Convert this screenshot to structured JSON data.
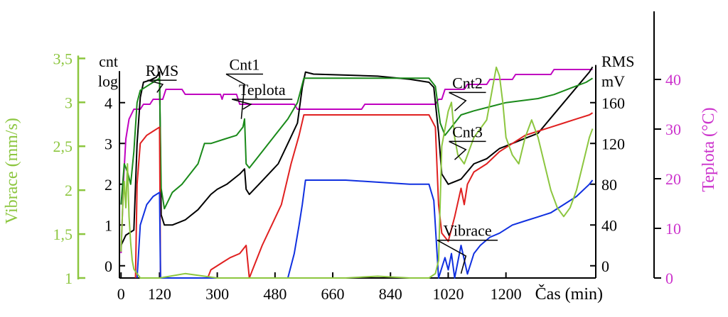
{
  "chart_data": {
    "type": "line",
    "axes": {
      "vibrace": {
        "label": "Vibrace (mm/s)",
        "range": [
          1,
          3.6
        ],
        "ticks": [
          "1",
          "1,5",
          "2",
          "2,5",
          "3",
          "3,5"
        ],
        "tick_values": [
          1,
          1.5,
          2,
          2.5,
          3,
          3.5
        ],
        "color": "#8cc63f"
      },
      "cnt": {
        "label_lines": [
          "cnt",
          "log"
        ],
        "range": [
          -0.3,
          5.3
        ],
        "ticks": [
          "0",
          "1",
          "2",
          "3",
          "4"
        ],
        "tick_values": [
          0,
          1,
          2,
          3,
          4
        ]
      },
      "rms": {
        "label_lines": [
          "RMS",
          "mV"
        ],
        "range": [
          -12,
          212
        ],
        "ticks": [
          "0",
          "40",
          "80",
          "120",
          "160"
        ],
        "tick_values": [
          0,
          40,
          80,
          120,
          160
        ]
      },
      "teplota": {
        "label": "Teplota (°C)",
        "range": [
          0,
          46
        ],
        "ticks": [
          "0",
          "10",
          "20",
          "30",
          "40"
        ],
        "tick_values": [
          0,
          10,
          20,
          30,
          40
        ],
        "color": "#cc33cc"
      },
      "time": {
        "label": "Čas (min)",
        "range": [
          -5,
          1480
        ],
        "ticks": [
          "0",
          "120",
          "300",
          "480",
          "660",
          "840",
          "1020",
          "1200"
        ],
        "tick_values": [
          0,
          120,
          300,
          480,
          660,
          840,
          1020,
          1200
        ]
      }
    },
    "series": [
      {
        "name": "Teplota",
        "axis": "teplota",
        "color": "#c000c0",
        "label_anchor": [
          440,
          36
        ],
        "label_leader": [
          [
            425,
            36
          ],
          [
            405,
            35
          ],
          [
            380,
            34
          ]
        ],
        "points": [
          [
            0,
            5
          ],
          [
            8,
            20
          ],
          [
            15,
            28
          ],
          [
            25,
            32
          ],
          [
            40,
            34
          ],
          [
            60,
            34
          ],
          [
            70,
            35
          ],
          [
            90,
            35
          ],
          [
            100,
            36
          ],
          [
            130,
            36
          ],
          [
            140,
            38
          ],
          [
            190,
            38
          ],
          [
            200,
            37
          ],
          [
            310,
            37
          ],
          [
            315,
            36
          ],
          [
            320,
            37
          ],
          [
            360,
            37
          ],
          [
            370,
            35
          ],
          [
            540,
            35
          ],
          [
            550,
            34
          ],
          [
            750,
            34
          ],
          [
            760,
            35
          ],
          [
            980,
            35
          ],
          [
            990,
            36
          ],
          [
            1000,
            36
          ],
          [
            1010,
            38
          ],
          [
            1070,
            38
          ],
          [
            1080,
            39
          ],
          [
            1140,
            39
          ],
          [
            1150,
            40
          ],
          [
            1220,
            40
          ],
          [
            1230,
            41
          ],
          [
            1340,
            41
          ],
          [
            1350,
            42
          ],
          [
            1470,
            42
          ]
        ]
      },
      {
        "name": "RMS",
        "axis": "rms",
        "color": "#000000",
        "label_anchor": [
          128,
          182
        ],
        "label_leader": [
          [
            155,
            183
          ],
          [
            130,
            178
          ],
          [
            112,
            170
          ]
        ],
        "points": [
          [
            0,
            20
          ],
          [
            15,
            30
          ],
          [
            40,
            35
          ],
          [
            50,
            120
          ],
          [
            60,
            165
          ],
          [
            70,
            180
          ],
          [
            90,
            182
          ],
          [
            110,
            185
          ],
          [
            120,
            190
          ],
          [
            125,
            50
          ],
          [
            135,
            40
          ],
          [
            160,
            40
          ],
          [
            200,
            45
          ],
          [
            240,
            55
          ],
          [
            280,
            70
          ],
          [
            300,
            75
          ],
          [
            330,
            80
          ],
          [
            370,
            90
          ],
          [
            385,
            95
          ],
          [
            390,
            75
          ],
          [
            400,
            70
          ],
          [
            430,
            80
          ],
          [
            460,
            90
          ],
          [
            490,
            100
          ],
          [
            520,
            120
          ],
          [
            550,
            140
          ],
          [
            565,
            175
          ],
          [
            575,
            190
          ],
          [
            600,
            188
          ],
          [
            700,
            187
          ],
          [
            800,
            186
          ],
          [
            900,
            183
          ],
          [
            960,
            180
          ],
          [
            975,
            175
          ],
          [
            990,
            130
          ],
          [
            1000,
            90
          ],
          [
            1020,
            80
          ],
          [
            1060,
            85
          ],
          [
            1100,
            100
          ],
          [
            1140,
            105
          ],
          [
            1180,
            115
          ],
          [
            1220,
            120
          ],
          [
            1260,
            125
          ],
          [
            1300,
            130
          ],
          [
            1340,
            145
          ],
          [
            1380,
            160
          ],
          [
            1420,
            175
          ],
          [
            1460,
            190
          ],
          [
            1470,
            195
          ]
        ]
      },
      {
        "name": "Cnt1",
        "axis": "cnt",
        "color": "#1a8a1a",
        "label_anchor": [
          385,
          4.7
        ],
        "label_leader": [
          [
            400,
            4.7
          ],
          [
            385,
            4.45
          ],
          [
            375,
            3.6
          ]
        ],
        "points": [
          [
            0,
            1.5
          ],
          [
            10,
            2.5
          ],
          [
            20,
            2.3
          ],
          [
            30,
            2.0
          ],
          [
            40,
            2.8
          ],
          [
            50,
            4.0
          ],
          [
            60,
            4.3
          ],
          [
            80,
            4.4
          ],
          [
            100,
            4.5
          ],
          [
            120,
            4.6
          ],
          [
            125,
            1.9
          ],
          [
            135,
            1.4
          ],
          [
            160,
            1.8
          ],
          [
            190,
            2.0
          ],
          [
            220,
            2.3
          ],
          [
            240,
            2.5
          ],
          [
            260,
            3.0
          ],
          [
            280,
            3.0
          ],
          [
            320,
            3.1
          ],
          [
            360,
            3.2
          ],
          [
            380,
            3.4
          ],
          [
            385,
            3.6
          ],
          [
            390,
            2.5
          ],
          [
            400,
            2.4
          ],
          [
            420,
            2.6
          ],
          [
            450,
            2.9
          ],
          [
            480,
            3.2
          ],
          [
            520,
            3.6
          ],
          [
            550,
            4.0
          ],
          [
            560,
            4.3
          ],
          [
            570,
            4.6
          ],
          [
            600,
            4.6
          ],
          [
            700,
            4.6
          ],
          [
            800,
            4.6
          ],
          [
            900,
            4.6
          ],
          [
            960,
            4.6
          ],
          [
            980,
            4.4
          ],
          [
            995,
            3.5
          ],
          [
            1010,
            3.2
          ],
          [
            1030,
            3.4
          ],
          [
            1060,
            3.7
          ],
          [
            1100,
            3.8
          ],
          [
            1150,
            3.9
          ],
          [
            1200,
            4.0
          ],
          [
            1250,
            4.05
          ],
          [
            1300,
            4.1
          ],
          [
            1350,
            4.2
          ],
          [
            1400,
            4.35
          ],
          [
            1450,
            4.5
          ],
          [
            1470,
            4.6
          ]
        ]
      },
      {
        "name": "Cnt2",
        "axis": "cnt",
        "color": "#e02020",
        "label_anchor": [
          1080,
          4.25
        ],
        "label_leader": [
          [
            1090,
            4.25
          ],
          [
            1075,
            4.05
          ],
          [
            1040,
            3.8
          ]
        ],
        "points": [
          [
            0,
            null
          ],
          [
            45,
            -0.3
          ],
          [
            50,
            2.0
          ],
          [
            60,
            3.0
          ],
          [
            80,
            3.2
          ],
          [
            100,
            3.3
          ],
          [
            120,
            3.4
          ],
          [
            123,
            -0.3
          ],
          [
            270,
            -0.3
          ],
          [
            280,
            -0.1
          ],
          [
            320,
            0.1
          ],
          [
            340,
            0.2
          ],
          [
            370,
            0.3
          ],
          [
            390,
            0.5
          ],
          [
            400,
            -0.3
          ],
          [
            410,
            -0.1
          ],
          [
            440,
            0.5
          ],
          [
            470,
            1.0
          ],
          [
            500,
            1.5
          ],
          [
            530,
            2.5
          ],
          [
            555,
            3.2
          ],
          [
            570,
            3.7
          ],
          [
            600,
            3.7
          ],
          [
            700,
            3.7
          ],
          [
            800,
            3.7
          ],
          [
            900,
            3.7
          ],
          [
            960,
            3.7
          ],
          [
            980,
            3.4
          ],
          [
            990,
            1.5
          ],
          [
            1000,
            0.8
          ],
          [
            1020,
            0.6
          ],
          [
            1040,
            1.2
          ],
          [
            1060,
            1.9
          ],
          [
            1070,
            1.5
          ],
          [
            1080,
            2.0
          ],
          [
            1100,
            2.3
          ],
          [
            1140,
            2.5
          ],
          [
            1180,
            2.8
          ],
          [
            1220,
            3.0
          ],
          [
            1260,
            3.2
          ],
          [
            1300,
            3.3
          ],
          [
            1340,
            3.4
          ],
          [
            1380,
            3.5
          ],
          [
            1420,
            3.6
          ],
          [
            1460,
            3.7
          ],
          [
            1470,
            3.75
          ]
        ]
      },
      {
        "name": "Cnt3",
        "axis": "cnt",
        "color": "#1030e0",
        "label_anchor": [
          1080,
          3.05
        ],
        "label_leader": [
          [
            1090,
            3.05
          ],
          [
            1075,
            2.85
          ],
          [
            1040,
            2.6
          ]
        ],
        "points": [
          [
            0,
            null
          ],
          [
            50,
            -0.3
          ],
          [
            60,
            1.0
          ],
          [
            80,
            1.5
          ],
          [
            100,
            1.7
          ],
          [
            120,
            1.8
          ],
          [
            123,
            -0.3
          ],
          [
            520,
            -0.3
          ],
          [
            540,
            0.3
          ],
          [
            555,
            1.0
          ],
          [
            565,
            1.5
          ],
          [
            575,
            2.1
          ],
          [
            600,
            2.1
          ],
          [
            700,
            2.1
          ],
          [
            800,
            2.05
          ],
          [
            900,
            2.0
          ],
          [
            960,
            2.0
          ],
          [
            975,
            1.6
          ],
          [
            990,
            -0.3
          ],
          [
            1010,
            0.2
          ],
          [
            1020,
            -0.1
          ],
          [
            1030,
            0.3
          ],
          [
            1040,
            -0.3
          ],
          [
            1060,
            0.5
          ],
          [
            1080,
            -0.2
          ],
          [
            1100,
            0.3
          ],
          [
            1120,
            0.5
          ],
          [
            1150,
            0.7
          ],
          [
            1180,
            0.8
          ],
          [
            1220,
            1.0
          ],
          [
            1260,
            1.1
          ],
          [
            1300,
            1.2
          ],
          [
            1340,
            1.3
          ],
          [
            1380,
            1.5
          ],
          [
            1420,
            1.7
          ],
          [
            1460,
            2.0
          ],
          [
            1470,
            2.1
          ]
        ]
      },
      {
        "name": "Vibrace",
        "axis": "vibrace",
        "color": "#8cc63f",
        "label_anchor": [
          1080,
          1.43
        ],
        "label_leader": [
          [
            1090,
            1.43
          ],
          [
            1075,
            1.25
          ],
          [
            1060,
            1.05
          ]
        ],
        "points": [
          [
            0,
            1.3
          ],
          [
            5,
            1.8
          ],
          [
            10,
            2.1
          ],
          [
            15,
            1.8
          ],
          [
            20,
            2.3
          ],
          [
            25,
            1.7
          ],
          [
            30,
            1.4
          ],
          [
            35,
            1.2
          ],
          [
            40,
            1.1
          ],
          [
            60,
            1.0
          ],
          [
            120,
            1.0
          ],
          [
            200,
            1.05
          ],
          [
            300,
            1.0
          ],
          [
            400,
            1.0
          ],
          [
            500,
            1.0
          ],
          [
            600,
            1.0
          ],
          [
            700,
            1.0
          ],
          [
            800,
            1.02
          ],
          [
            900,
            1.0
          ],
          [
            960,
            1.0
          ],
          [
            980,
            1.05
          ],
          [
            990,
            1.2
          ],
          [
            1000,
            2.5
          ],
          [
            1010,
            2.7
          ],
          [
            1020,
            2.9
          ],
          [
            1030,
            3.0
          ],
          [
            1040,
            2.6
          ],
          [
            1050,
            2.4
          ],
          [
            1070,
            2.3
          ],
          [
            1100,
            2.6
          ],
          [
            1140,
            2.8
          ],
          [
            1160,
            3.2
          ],
          [
            1170,
            3.4
          ],
          [
            1180,
            3.3
          ],
          [
            1190,
            3.0
          ],
          [
            1200,
            2.6
          ],
          [
            1220,
            2.4
          ],
          [
            1240,
            2.3
          ],
          [
            1260,
            2.6
          ],
          [
            1280,
            2.8
          ],
          [
            1300,
            2.6
          ],
          [
            1320,
            2.3
          ],
          [
            1340,
            2.0
          ],
          [
            1360,
            1.8
          ],
          [
            1380,
            1.7
          ],
          [
            1400,
            1.8
          ],
          [
            1420,
            2.0
          ],
          [
            1440,
            2.3
          ],
          [
            1460,
            2.6
          ],
          [
            1470,
            2.7
          ]
        ]
      }
    ]
  }
}
